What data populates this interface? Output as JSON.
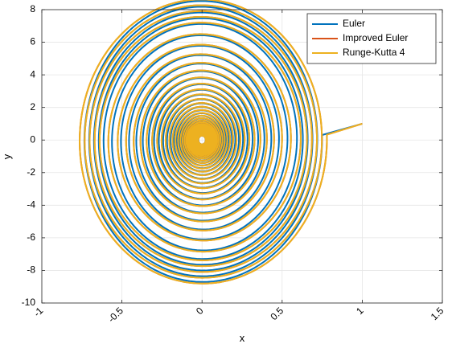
{
  "chart_data": {
    "type": "line",
    "xlabel": "x",
    "ylabel": "y",
    "xlim": [
      -1,
      1.5
    ],
    "ylim": [
      -10,
      8
    ],
    "xticks": [
      -1,
      -0.5,
      0,
      0.5,
      1,
      1.5
    ],
    "yticks": [
      -10,
      -8,
      -6,
      -4,
      -2,
      0,
      2,
      4,
      6,
      8
    ],
    "grid": true,
    "legend_position": "top-right",
    "initial_point": {
      "x": 1,
      "y": 1
    },
    "series": [
      {
        "name": "Euler",
        "color": "#0072BD",
        "max_abs_x": 0.75,
        "max_abs_y": 8.8
      },
      {
        "name": "Improved Euler",
        "color": "#D95319",
        "max_abs_x": 0.78,
        "max_abs_y": 8.9
      },
      {
        "name": "Runge-Kutta 4",
        "color": "#EDB120",
        "max_abs_x": 0.78,
        "max_abs_y": 8.9
      }
    ]
  }
}
